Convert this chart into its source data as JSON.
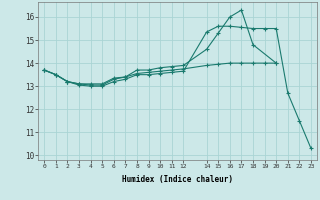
{
  "xlabel": "Humidex (Indice chaleur)",
  "background_color": "#cce8e8",
  "grid_color": "#aad4d4",
  "line_color": "#1a7a6e",
  "xlim": [
    -0.5,
    23.5
  ],
  "ylim": [
    9.8,
    16.65
  ],
  "xticks": [
    0,
    1,
    2,
    3,
    4,
    5,
    6,
    7,
    8,
    9,
    10,
    11,
    12,
    14,
    15,
    16,
    17,
    18,
    19,
    20,
    21,
    22,
    23
  ],
  "yticks": [
    10,
    11,
    12,
    13,
    14,
    15,
    16
  ],
  "line1_x": [
    0,
    1,
    2,
    3,
    4,
    5,
    6,
    7,
    8,
    9,
    10,
    11,
    12,
    14,
    15,
    16,
    17,
    18,
    19,
    20
  ],
  "line1_y": [
    13.7,
    13.5,
    13.2,
    13.1,
    13.1,
    13.1,
    13.35,
    13.4,
    13.55,
    13.6,
    13.65,
    13.7,
    13.75,
    13.9,
    13.95,
    14.0,
    14.0,
    14.0,
    14.0,
    14.0
  ],
  "line2_x": [
    0,
    1,
    2,
    3,
    4,
    5,
    6,
    7,
    8,
    9,
    10,
    11,
    12,
    14,
    15,
    16,
    17,
    18,
    20
  ],
  "line2_y": [
    13.7,
    13.5,
    13.2,
    13.1,
    13.05,
    13.05,
    13.3,
    13.4,
    13.7,
    13.7,
    13.8,
    13.85,
    13.9,
    14.6,
    15.3,
    16.0,
    16.3,
    14.8,
    14.0
  ],
  "line3_x": [
    0,
    1,
    2,
    3,
    4,
    5,
    6,
    7,
    8,
    9,
    10,
    11,
    12,
    14,
    15,
    16,
    17,
    18,
    19,
    20,
    21,
    22,
    23
  ],
  "line3_y": [
    13.7,
    13.5,
    13.2,
    13.05,
    13.0,
    13.0,
    13.2,
    13.3,
    13.5,
    13.5,
    13.55,
    13.6,
    13.65,
    15.35,
    15.6,
    15.6,
    15.55,
    15.5,
    15.5,
    15.5,
    12.7,
    11.5,
    10.3
  ]
}
